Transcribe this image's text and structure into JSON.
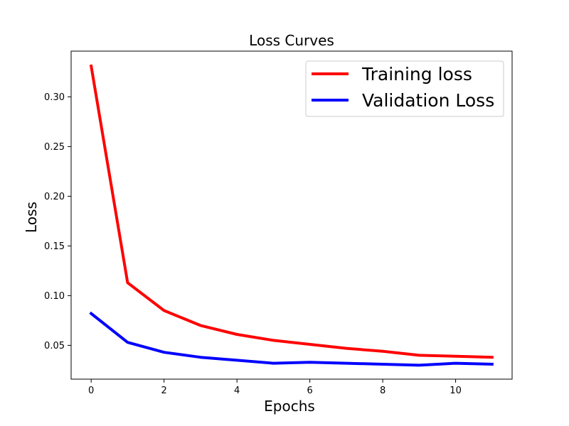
{
  "chart_data": {
    "type": "line",
    "title": "Loss Curves",
    "xlabel": "Epochs",
    "ylabel": "Loss",
    "x": [
      0,
      1,
      2,
      3,
      4,
      5,
      6,
      7,
      8,
      9,
      10,
      11
    ],
    "series": [
      {
        "name": "Training loss",
        "color": "#ff0000",
        "values": [
          0.331,
          0.113,
          0.085,
          0.07,
          0.061,
          0.055,
          0.051,
          0.047,
          0.044,
          0.04,
          0.039,
          0.038
        ]
      },
      {
        "name": "Validation Loss",
        "color": "#0000ff",
        "values": [
          0.082,
          0.053,
          0.043,
          0.038,
          0.035,
          0.032,
          0.033,
          0.032,
          0.031,
          0.03,
          0.032,
          0.031
        ]
      }
    ],
    "xlim": [
      -0.55,
      11.55
    ],
    "ylim": [
      0.016,
      0.346
    ],
    "xticks": [
      0,
      2,
      4,
      6,
      8,
      10
    ],
    "xtick_labels": [
      "0",
      "2",
      "4",
      "6",
      "8",
      "10"
    ],
    "yticks": [
      0.05,
      0.1,
      0.15,
      0.2,
      0.25,
      0.3
    ],
    "ytick_labels": [
      "0.05",
      "0.10",
      "0.15",
      "0.20",
      "0.25",
      "0.30"
    ],
    "grid": false,
    "legend_position": "top-right"
  }
}
